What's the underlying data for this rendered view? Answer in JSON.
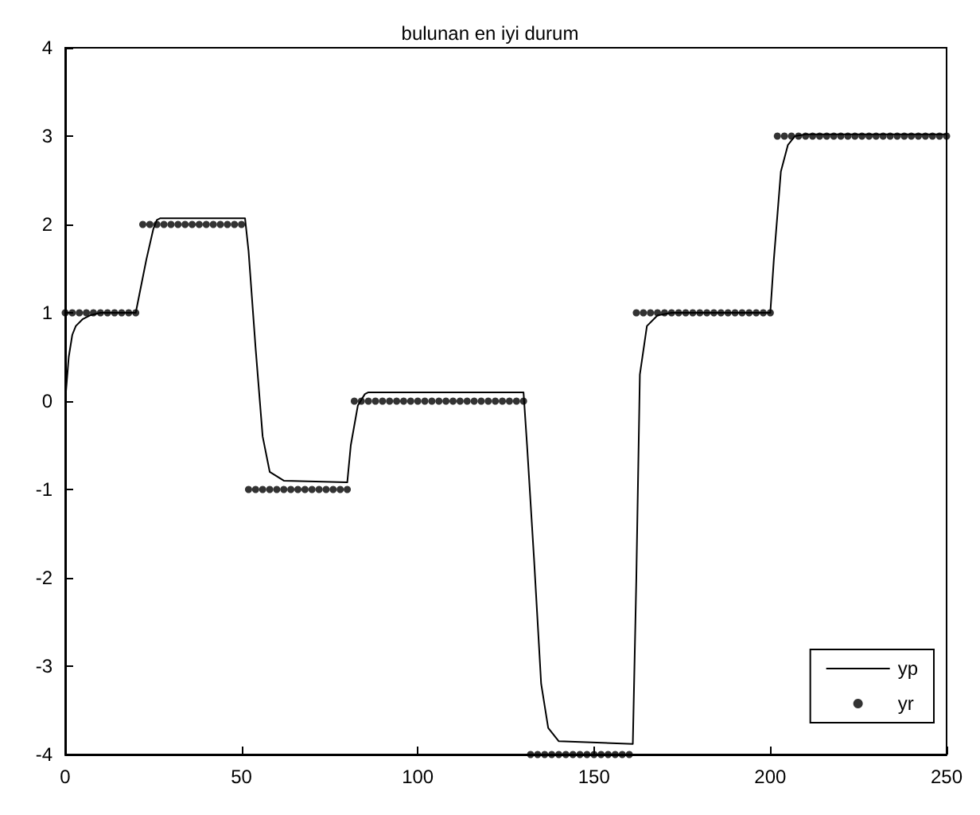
{
  "chart_data": {
    "type": "line",
    "title": "bulunan en iyi durum",
    "xlim": [
      0,
      250
    ],
    "xticks": [
      0,
      50,
      100,
      150,
      200,
      250
    ],
    "ylim": [
      -4,
      4
    ],
    "yticks": [
      -4,
      -3,
      -2,
      -1,
      0,
      1,
      2,
      3,
      4
    ],
    "grid": false,
    "legend": "bottom right",
    "series": [
      {
        "name": "yp",
        "type": "line",
        "color": "#000000",
        "marker": "none",
        "line_style": "solid",
        "x": [
          0,
          1,
          2,
          3,
          5,
          7,
          10,
          20,
          21,
          23,
          25,
          26,
          27,
          51,
          52,
          54,
          56,
          58,
          62,
          80,
          81,
          83,
          85,
          86,
          130,
          131,
          133,
          135,
          137,
          140,
          161,
          162,
          163,
          165,
          168,
          172,
          200,
          201,
          203,
          205,
          207,
          210,
          250
        ],
        "values": [
          0,
          0.5,
          0.75,
          0.85,
          0.93,
          0.97,
          1.0,
          1.0,
          1.2,
          1.6,
          1.95,
          2.05,
          2.07,
          2.07,
          1.7,
          0.6,
          -0.4,
          -0.8,
          -0.9,
          -0.92,
          -0.5,
          -0.05,
          0.08,
          0.1,
          0.1,
          -0.5,
          -1.8,
          -3.2,
          -3.7,
          -3.85,
          -3.88,
          -2,
          0.3,
          0.85,
          0.97,
          1.0,
          1.0,
          1.6,
          2.6,
          2.9,
          3.0,
          3.02,
          3.02
        ]
      },
      {
        "name": "yr",
        "type": "scatter",
        "color": "#000000",
        "marker": "circle",
        "x": [
          0,
          2,
          4,
          6,
          8,
          10,
          12,
          14,
          16,
          18,
          20,
          22,
          24,
          26,
          28,
          30,
          32,
          34,
          36,
          38,
          40,
          42,
          44,
          46,
          48,
          50,
          52,
          54,
          56,
          58,
          60,
          62,
          64,
          66,
          68,
          70,
          72,
          74,
          76,
          78,
          80,
          82,
          84,
          86,
          88,
          90,
          92,
          94,
          96,
          98,
          100,
          102,
          104,
          106,
          108,
          110,
          112,
          114,
          116,
          118,
          120,
          122,
          124,
          126,
          128,
          130,
          132,
          134,
          136,
          138,
          140,
          142,
          144,
          146,
          148,
          150,
          152,
          154,
          156,
          158,
          160,
          162,
          164,
          166,
          168,
          170,
          172,
          174,
          176,
          178,
          180,
          182,
          184,
          186,
          188,
          190,
          192,
          194,
          196,
          198,
          200,
          202,
          204,
          206,
          208,
          210,
          212,
          214,
          216,
          218,
          220,
          222,
          224,
          226,
          228,
          230,
          232,
          234,
          236,
          238,
          240,
          242,
          244,
          246,
          248,
          250
        ],
        "values": [
          1,
          1,
          1,
          1,
          1,
          1,
          1,
          1,
          1,
          1,
          1,
          2,
          2,
          2,
          2,
          2,
          2,
          2,
          2,
          2,
          2,
          2,
          2,
          2,
          2,
          2,
          -1,
          -1,
          -1,
          -1,
          -1,
          -1,
          -1,
          -1,
          -1,
          -1,
          -1,
          -1,
          -1,
          -1,
          -1,
          0,
          0,
          0,
          0,
          0,
          0,
          0,
          0,
          0,
          0,
          0,
          0,
          0,
          0,
          0,
          0,
          0,
          0,
          0,
          0,
          0,
          0,
          0,
          0,
          0,
          -4,
          -4,
          -4,
          -4,
          -4,
          -4,
          -4,
          -4,
          -4,
          -4,
          -4,
          -4,
          -4,
          -4,
          -4,
          1,
          1,
          1,
          1,
          1,
          1,
          1,
          1,
          1,
          1,
          1,
          1,
          1,
          1,
          1,
          1,
          1,
          1,
          1,
          1,
          3,
          3,
          3,
          3,
          3,
          3,
          3,
          3,
          3,
          3,
          3,
          3,
          3,
          3,
          3,
          3,
          3,
          3,
          3,
          3,
          3,
          3,
          3,
          3,
          3
        ]
      }
    ]
  }
}
